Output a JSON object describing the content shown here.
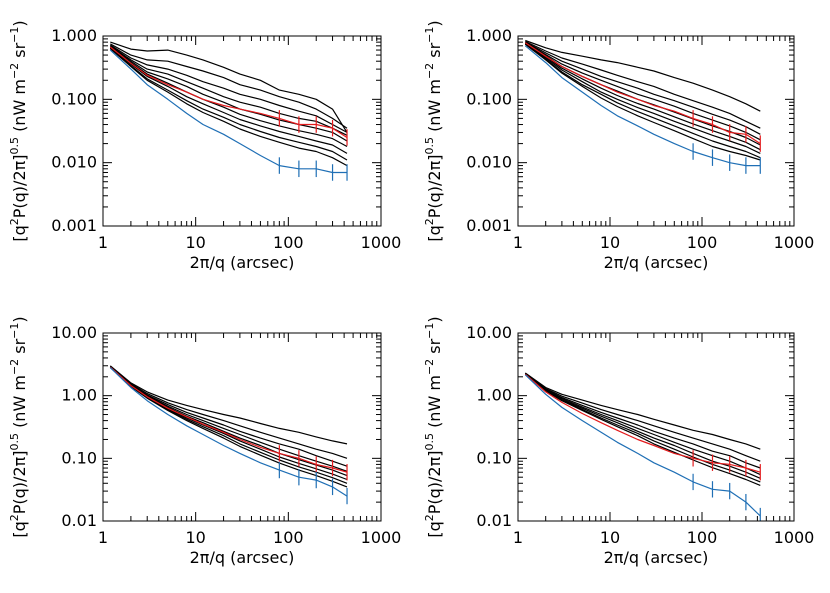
{
  "colors": {
    "black_series": "#000000",
    "red_series": "#e31a1c",
    "blue_series": "#1f6fb5"
  },
  "labels": {
    "xlabel": "2π/q (arcsec)",
    "ylabel_main": "[q",
    "ylabel_sup2": "2",
    "ylabel_mid": "P(q)/2π]",
    "ylabel_sup05": "0.5",
    "ylabel_units": " (nW m",
    "ylabel_supm2": "−2",
    "ylabel_sr": " sr",
    "ylabel_supm1": "−1",
    "ylabel_close": ")"
  },
  "chart_data": [
    {
      "type": "line",
      "xscale": "log",
      "yscale": "log",
      "xlim": [
        1,
        1000
      ],
      "ylim": [
        0.001,
        1.0
      ],
      "xticks": [
        "1",
        "10",
        "100",
        "1000"
      ],
      "yticks": [
        "0.001",
        "0.010",
        "0.100",
        "1.000"
      ],
      "x": [
        1.2,
        2,
        3,
        5,
        8,
        12,
        20,
        30,
        50,
        80,
        130,
        200,
        300,
        430
      ],
      "series": [
        {
          "color": "black",
          "values": [
            0.8,
            0.62,
            0.58,
            0.6,
            0.5,
            0.42,
            0.32,
            0.25,
            0.2,
            0.14,
            0.12,
            0.1,
            0.07,
            0.03
          ]
        },
        {
          "color": "black",
          "values": [
            0.75,
            0.5,
            0.42,
            0.4,
            0.33,
            0.28,
            0.22,
            0.17,
            0.14,
            0.11,
            0.09,
            0.07,
            0.05,
            0.035
          ]
        },
        {
          "color": "black",
          "values": [
            0.72,
            0.45,
            0.35,
            0.3,
            0.24,
            0.19,
            0.15,
            0.12,
            0.1,
            0.08,
            0.065,
            0.055,
            0.04,
            0.03
          ]
        },
        {
          "color": "black",
          "values": [
            0.7,
            0.42,
            0.3,
            0.25,
            0.19,
            0.15,
            0.11,
            0.09,
            0.075,
            0.06,
            0.05,
            0.045,
            0.035,
            0.027
          ]
        },
        {
          "color": "black",
          "values": [
            0.68,
            0.4,
            0.27,
            0.21,
            0.16,
            0.12,
            0.09,
            0.07,
            0.058,
            0.047,
            0.04,
            0.035,
            0.03,
            0.022
          ]
        },
        {
          "color": "black",
          "values": [
            0.66,
            0.38,
            0.25,
            0.18,
            0.13,
            0.1,
            0.075,
            0.058,
            0.046,
            0.038,
            0.032,
            0.028,
            0.024,
            0.018
          ]
        },
        {
          "color": "black",
          "values": [
            0.65,
            0.36,
            0.23,
            0.16,
            0.11,
            0.085,
            0.062,
            0.048,
            0.038,
            0.031,
            0.026,
            0.022,
            0.019,
            0.014
          ]
        },
        {
          "color": "black",
          "values": [
            0.64,
            0.34,
            0.21,
            0.14,
            0.095,
            0.07,
            0.052,
            0.04,
            0.031,
            0.025,
            0.021,
            0.018,
            0.015,
            0.011
          ]
        },
        {
          "color": "black",
          "values": [
            0.63,
            0.33,
            0.2,
            0.13,
            0.085,
            0.062,
            0.045,
            0.034,
            0.026,
            0.021,
            0.017,
            0.015,
            0.012,
            0.009
          ]
        },
        {
          "color": "red",
          "values": [
            0.67,
            0.37,
            0.24,
            0.17,
            0.13,
            0.1,
            0.08,
            0.07,
            0.06,
            0.05,
            0.04,
            0.04,
            0.035,
            0.025
          ]
        },
        {
          "color": "blue",
          "values": [
            0.6,
            0.3,
            0.17,
            0.1,
            0.06,
            0.04,
            0.028,
            0.02,
            0.013,
            0.009,
            0.008,
            0.008,
            0.007,
            0.007
          ]
        }
      ]
    },
    {
      "type": "line",
      "xscale": "log",
      "yscale": "log",
      "xlim": [
        1,
        1000
      ],
      "ylim": [
        0.001,
        1.0
      ],
      "xticks": [
        "1",
        "10",
        "100",
        "1000"
      ],
      "yticks": [
        "0.001",
        "0.010",
        "0.100",
        "1.000"
      ],
      "x": [
        1.2,
        2,
        3,
        5,
        8,
        12,
        20,
        30,
        50,
        80,
        130,
        200,
        300,
        430
      ],
      "series": [
        {
          "color": "black",
          "values": [
            0.85,
            0.65,
            0.55,
            0.48,
            0.42,
            0.38,
            0.32,
            0.28,
            0.22,
            0.18,
            0.14,
            0.11,
            0.085,
            0.065
          ]
        },
        {
          "color": "black",
          "values": [
            0.82,
            0.58,
            0.45,
            0.36,
            0.29,
            0.24,
            0.19,
            0.16,
            0.12,
            0.095,
            0.075,
            0.06,
            0.045,
            0.035
          ]
        },
        {
          "color": "black",
          "values": [
            0.8,
            0.54,
            0.4,
            0.3,
            0.23,
            0.19,
            0.15,
            0.12,
            0.095,
            0.075,
            0.058,
            0.047,
            0.037,
            0.028
          ]
        },
        {
          "color": "black",
          "values": [
            0.79,
            0.51,
            0.36,
            0.26,
            0.2,
            0.16,
            0.12,
            0.1,
            0.078,
            0.06,
            0.047,
            0.038,
            0.03,
            0.023
          ]
        },
        {
          "color": "black",
          "values": [
            0.78,
            0.49,
            0.33,
            0.23,
            0.17,
            0.135,
            0.1,
            0.082,
            0.063,
            0.049,
            0.038,
            0.031,
            0.025,
            0.019
          ]
        },
        {
          "color": "black",
          "values": [
            0.77,
            0.47,
            0.31,
            0.21,
            0.15,
            0.115,
            0.086,
            0.07,
            0.053,
            0.041,
            0.032,
            0.026,
            0.021,
            0.016
          ]
        },
        {
          "color": "black",
          "values": [
            0.76,
            0.45,
            0.29,
            0.19,
            0.13,
            0.1,
            0.074,
            0.06,
            0.045,
            0.035,
            0.027,
            0.022,
            0.018,
            0.014
          ]
        },
        {
          "color": "black",
          "values": [
            0.75,
            0.43,
            0.27,
            0.17,
            0.12,
            0.088,
            0.064,
            0.051,
            0.038,
            0.029,
            0.022,
            0.018,
            0.015,
            0.012
          ]
        },
        {
          "color": "black",
          "values": [
            0.74,
            0.42,
            0.26,
            0.16,
            0.105,
            0.077,
            0.055,
            0.043,
            0.032,
            0.024,
            0.018,
            0.015,
            0.013,
            0.011
          ]
        },
        {
          "color": "red",
          "values": [
            0.78,
            0.48,
            0.33,
            0.23,
            0.17,
            0.13,
            0.1,
            0.08,
            0.065,
            0.05,
            0.04,
            0.03,
            0.028,
            0.02
          ]
        },
        {
          "color": "blue",
          "values": [
            0.7,
            0.38,
            0.22,
            0.13,
            0.08,
            0.055,
            0.038,
            0.028,
            0.02,
            0.015,
            0.012,
            0.01,
            0.009,
            0.009
          ]
        }
      ]
    },
    {
      "type": "line",
      "xscale": "log",
      "yscale": "log",
      "xlim": [
        1,
        1000
      ],
      "ylim": [
        0.01,
        10.0
      ],
      "xticks": [
        "1",
        "10",
        "100",
        "1000"
      ],
      "yticks": [
        "0.01",
        "0.10",
        "1.00",
        "10.00"
      ],
      "x": [
        1.2,
        2,
        3,
        5,
        8,
        12,
        20,
        30,
        50,
        80,
        130,
        200,
        300,
        430
      ],
      "series": [
        {
          "color": "black",
          "values": [
            3.0,
            1.6,
            1.15,
            0.85,
            0.7,
            0.6,
            0.5,
            0.44,
            0.36,
            0.3,
            0.26,
            0.22,
            0.19,
            0.17
          ]
        },
        {
          "color": "black",
          "values": [
            2.95,
            1.55,
            1.08,
            0.77,
            0.6,
            0.5,
            0.4,
            0.33,
            0.26,
            0.21,
            0.17,
            0.14,
            0.12,
            0.1
          ]
        },
        {
          "color": "black",
          "values": [
            2.9,
            1.5,
            1.03,
            0.72,
            0.54,
            0.44,
            0.34,
            0.27,
            0.21,
            0.17,
            0.14,
            0.11,
            0.09,
            0.075
          ]
        },
        {
          "color": "black",
          "values": [
            2.88,
            1.48,
            1.0,
            0.68,
            0.5,
            0.4,
            0.3,
            0.24,
            0.18,
            0.14,
            0.11,
            0.09,
            0.075,
            0.062
          ]
        },
        {
          "color": "black",
          "values": [
            2.86,
            1.46,
            0.97,
            0.65,
            0.47,
            0.37,
            0.27,
            0.21,
            0.16,
            0.12,
            0.095,
            0.078,
            0.065,
            0.053
          ]
        },
        {
          "color": "black",
          "values": [
            2.85,
            1.44,
            0.95,
            0.62,
            0.44,
            0.34,
            0.25,
            0.19,
            0.14,
            0.105,
            0.083,
            0.068,
            0.056,
            0.046
          ]
        },
        {
          "color": "black",
          "values": [
            2.84,
            1.42,
            0.93,
            0.6,
            0.42,
            0.32,
            0.23,
            0.17,
            0.125,
            0.094,
            0.073,
            0.06,
            0.049,
            0.04
          ]
        },
        {
          "color": "black",
          "values": [
            2.83,
            1.4,
            0.91,
            0.58,
            0.4,
            0.3,
            0.21,
            0.155,
            0.112,
            0.084,
            0.065,
            0.053,
            0.043,
            0.035
          ]
        },
        {
          "color": "red",
          "values": [
            2.86,
            1.45,
            0.96,
            0.63,
            0.46,
            0.35,
            0.26,
            0.2,
            0.15,
            0.12,
            0.1,
            0.08,
            0.07,
            0.06
          ]
        },
        {
          "color": "blue",
          "values": [
            2.8,
            1.35,
            0.83,
            0.5,
            0.33,
            0.24,
            0.16,
            0.12,
            0.085,
            0.065,
            0.05,
            0.045,
            0.035,
            0.025
          ]
        }
      ]
    },
    {
      "type": "line",
      "xscale": "log",
      "yscale": "log",
      "xlim": [
        1,
        1000
      ],
      "ylim": [
        0.01,
        10.0
      ],
      "xticks": [
        "1",
        "10",
        "100",
        "1000"
      ],
      "yticks": [
        "0.01",
        "0.10",
        "1.00",
        "10.00"
      ],
      "x": [
        1.2,
        2,
        3,
        5,
        8,
        12,
        20,
        30,
        50,
        80,
        130,
        200,
        300,
        430
      ],
      "series": [
        {
          "color": "black",
          "values": [
            2.3,
            1.35,
            1.05,
            0.85,
            0.7,
            0.6,
            0.5,
            0.42,
            0.34,
            0.28,
            0.24,
            0.2,
            0.17,
            0.14
          ]
        },
        {
          "color": "black",
          "values": [
            2.28,
            1.3,
            0.98,
            0.76,
            0.6,
            0.5,
            0.4,
            0.33,
            0.26,
            0.21,
            0.17,
            0.14,
            0.11,
            0.09
          ]
        },
        {
          "color": "black",
          "values": [
            2.26,
            1.27,
            0.93,
            0.7,
            0.54,
            0.44,
            0.34,
            0.27,
            0.21,
            0.17,
            0.13,
            0.11,
            0.085,
            0.07
          ]
        },
        {
          "color": "black",
          "values": [
            2.25,
            1.25,
            0.9,
            0.66,
            0.5,
            0.4,
            0.3,
            0.24,
            0.18,
            0.14,
            0.11,
            0.09,
            0.07,
            0.055
          ]
        },
        {
          "color": "black",
          "values": [
            2.24,
            1.23,
            0.87,
            0.63,
            0.47,
            0.37,
            0.27,
            0.21,
            0.16,
            0.12,
            0.09,
            0.075,
            0.06,
            0.048
          ]
        },
        {
          "color": "black",
          "values": [
            2.23,
            1.21,
            0.85,
            0.6,
            0.44,
            0.34,
            0.25,
            0.19,
            0.14,
            0.105,
            0.08,
            0.065,
            0.052,
            0.042
          ]
        },
        {
          "color": "black",
          "values": [
            2.22,
            1.19,
            0.83,
            0.58,
            0.42,
            0.32,
            0.23,
            0.17,
            0.125,
            0.094,
            0.071,
            0.057,
            0.046,
            0.037
          ]
        },
        {
          "color": "red",
          "values": [
            2.2,
            1.15,
            0.78,
            0.52,
            0.37,
            0.28,
            0.2,
            0.16,
            0.12,
            0.1,
            0.085,
            0.08,
            0.07,
            0.06
          ]
        },
        {
          "color": "blue",
          "values": [
            2.15,
            1.05,
            0.65,
            0.4,
            0.26,
            0.18,
            0.12,
            0.085,
            0.06,
            0.042,
            0.032,
            0.03,
            0.02,
            0.012
          ]
        }
      ]
    }
  ]
}
